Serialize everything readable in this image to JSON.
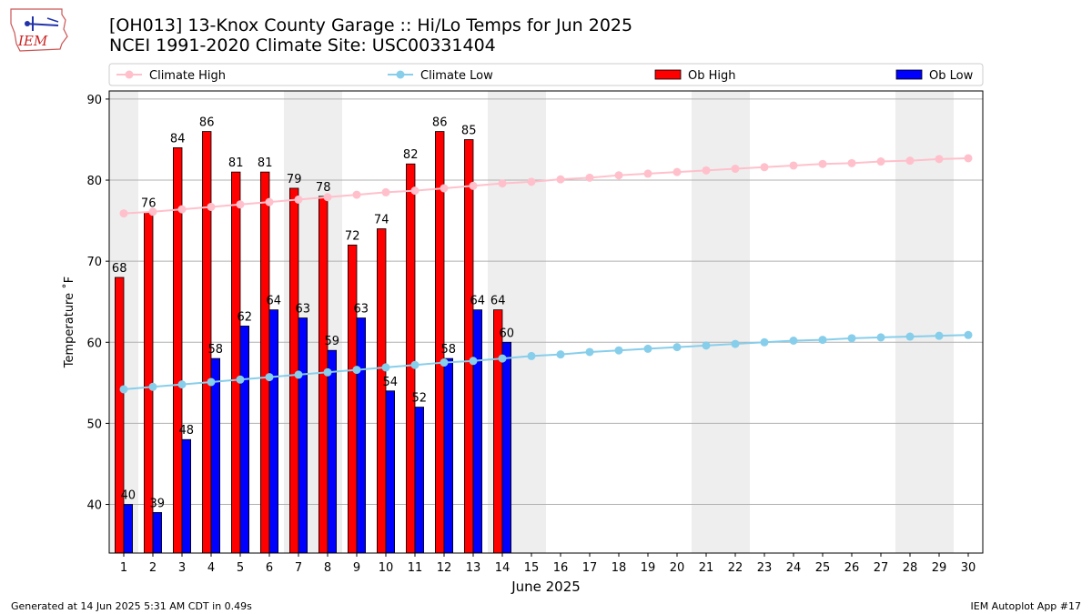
{
  "header": {
    "title_line1": "[OH013] 13-Knox County Garage :: Hi/Lo Temps for Jun 2025",
    "title_line2": "NCEI 1991-2020 Climate Site: USC00331404",
    "logo_text": "IEM"
  },
  "footer": {
    "left": "Generated at 14 Jun 2025 5:31 AM CDT in 0.49s",
    "right": "IEM Autoplot App #17"
  },
  "colors": {
    "climate_high": "#ffc0cb",
    "climate_low": "#87ceeb",
    "ob_high": "#ff0000",
    "ob_low": "#0000ff",
    "weekend_shade": "#eeeeee"
  },
  "chart_data": {
    "type": "bar",
    "xlabel": "June 2025",
    "ylabel": "Temperature ˚F",
    "ylim": [
      34,
      91
    ],
    "yticks": [
      40,
      50,
      60,
      70,
      80,
      90
    ],
    "grid": true,
    "legend_position": "top",
    "weekend_days": [
      1,
      7,
      8,
      14,
      15,
      21,
      22,
      28,
      29
    ],
    "categories": [
      "1",
      "2",
      "3",
      "4",
      "5",
      "6",
      "7",
      "8",
      "9",
      "10",
      "11",
      "12",
      "13",
      "14",
      "15",
      "16",
      "17",
      "18",
      "19",
      "20",
      "21",
      "22",
      "23",
      "24",
      "25",
      "26",
      "27",
      "28",
      "29",
      "30"
    ],
    "series": [
      {
        "name": "Climate High",
        "kind": "line",
        "values": [
          75.9,
          76.1,
          76.4,
          76.7,
          77.0,
          77.3,
          77.6,
          77.9,
          78.2,
          78.5,
          78.7,
          79.0,
          79.3,
          79.6,
          79.8,
          80.1,
          80.3,
          80.6,
          80.8,
          81.0,
          81.2,
          81.4,
          81.6,
          81.8,
          82.0,
          82.1,
          82.3,
          82.4,
          82.6,
          82.7
        ]
      },
      {
        "name": "Climate Low",
        "kind": "line",
        "values": [
          54.2,
          54.5,
          54.8,
          55.1,
          55.4,
          55.7,
          56.0,
          56.3,
          56.6,
          56.9,
          57.2,
          57.5,
          57.7,
          58.0,
          58.3,
          58.5,
          58.8,
          59.0,
          59.2,
          59.4,
          59.6,
          59.8,
          60.0,
          60.2,
          60.3,
          60.5,
          60.6,
          60.7,
          60.8,
          60.9
        ]
      },
      {
        "name": "Ob High",
        "kind": "bar",
        "values": [
          68,
          76,
          84,
          86,
          81,
          81,
          79,
          78,
          72,
          74,
          82,
          86,
          85,
          64,
          null,
          null,
          null,
          null,
          null,
          null,
          null,
          null,
          null,
          null,
          null,
          null,
          null,
          null,
          null,
          null
        ]
      },
      {
        "name": "Ob Low",
        "kind": "bar",
        "values": [
          40,
          39,
          48,
          58,
          62,
          64,
          63,
          59,
          63,
          54,
          52,
          58,
          64,
          60,
          null,
          null,
          null,
          null,
          null,
          null,
          null,
          null,
          null,
          null,
          null,
          null,
          null,
          null,
          null,
          null
        ]
      }
    ]
  }
}
